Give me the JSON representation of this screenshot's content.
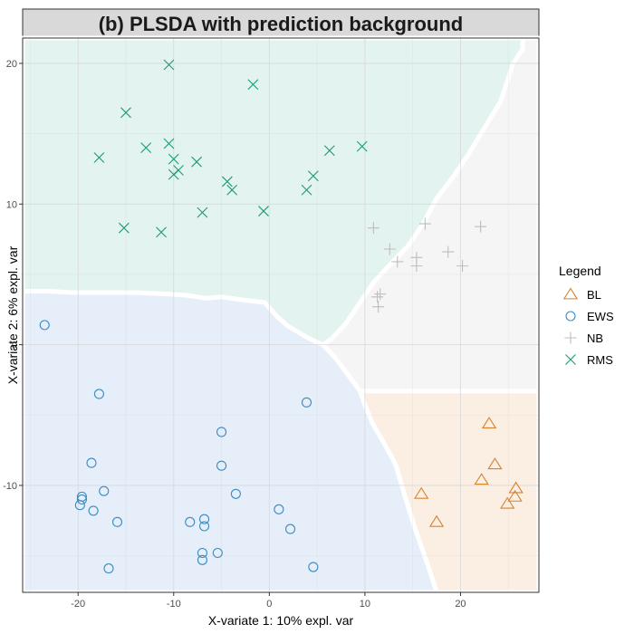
{
  "chart_data": {
    "type": "scatter",
    "title": "(b) PLSDA with prediction background",
    "xlabel": "X-variate 1: 10% expl. var",
    "ylabel": "X-variate 2: 6% expl. var",
    "xlim": [
      -25.8,
      28.2
    ],
    "ylim": [
      -17.6,
      21.8
    ],
    "x_ticks": [
      -20,
      -10,
      0,
      10,
      20
    ],
    "y_ticks": [
      -10,
      0,
      10,
      20
    ],
    "grid": true,
    "legend": {
      "title": "Legend",
      "position": "right"
    },
    "background_regions": [
      {
        "class": "RMS",
        "color": "#e3f3ef",
        "polygon": [
          [
            -25.8,
            21.8
          ],
          [
            26.5,
            21.8
          ],
          [
            26.5,
            21.0
          ],
          [
            25.5,
            20.0
          ],
          [
            24.2,
            17.3
          ],
          [
            22.4,
            15.3
          ],
          [
            20.8,
            13.5
          ],
          [
            19.2,
            11.9
          ],
          [
            17.5,
            10.4
          ],
          [
            16.0,
            8.5
          ],
          [
            14.5,
            7.0
          ],
          [
            12.5,
            5.6
          ],
          [
            11.0,
            4.5
          ],
          [
            9.5,
            3.0
          ],
          [
            8.0,
            1.5
          ],
          [
            6.5,
            0.4
          ],
          [
            5.6,
            0.0
          ],
          [
            4.0,
            0.5
          ],
          [
            2.0,
            1.3
          ],
          [
            0.8,
            2.0
          ],
          [
            -0.5,
            3.0
          ],
          [
            -3.0,
            3.2
          ],
          [
            -5.0,
            3.4
          ],
          [
            -6.5,
            3.3
          ],
          [
            -8.5,
            3.5
          ],
          [
            -10.5,
            3.6
          ],
          [
            -14.0,
            3.7
          ],
          [
            -17.0,
            3.7
          ],
          [
            -20.5,
            3.7
          ],
          [
            -23.0,
            3.8
          ],
          [
            -25.8,
            3.8
          ]
        ]
      },
      {
        "class": "NB",
        "color": "#f5f5f5",
        "polygon": [
          [
            26.5,
            21.8
          ],
          [
            28.2,
            21.8
          ],
          [
            28.2,
            -3.3
          ],
          [
            9.5,
            -3.3
          ],
          [
            8.3,
            -2.2
          ],
          [
            7.0,
            -1.0
          ],
          [
            5.6,
            0.0
          ],
          [
            6.5,
            0.4
          ],
          [
            8.0,
            1.5
          ],
          [
            9.5,
            3.0
          ],
          [
            11.0,
            4.5
          ],
          [
            12.5,
            5.6
          ],
          [
            14.5,
            7.0
          ],
          [
            16.0,
            8.5
          ],
          [
            17.5,
            10.4
          ],
          [
            19.2,
            11.9
          ],
          [
            20.8,
            13.5
          ],
          [
            22.4,
            15.3
          ],
          [
            24.2,
            17.3
          ],
          [
            25.5,
            20.0
          ],
          [
            26.5,
            21.0
          ]
        ]
      },
      {
        "class": "BL",
        "color": "#fbeee3",
        "polygon": [
          [
            9.5,
            -3.3
          ],
          [
            28.2,
            -3.3
          ],
          [
            28.2,
            -17.6
          ],
          [
            17.5,
            -17.6
          ],
          [
            16.5,
            -15.5
          ],
          [
            15.2,
            -13.0
          ],
          [
            14.2,
            -10.8
          ],
          [
            13.2,
            -8.5
          ],
          [
            12.0,
            -7.0
          ],
          [
            10.8,
            -5.6
          ],
          [
            10.0,
            -4.3
          ]
        ]
      },
      {
        "class": "EWS",
        "color": "#e5eef9",
        "polygon": [
          [
            -25.8,
            3.8
          ],
          [
            -23.0,
            3.8
          ],
          [
            -20.5,
            3.7
          ],
          [
            -17.0,
            3.7
          ],
          [
            -14.0,
            3.7
          ],
          [
            -10.5,
            3.6
          ],
          [
            -8.5,
            3.5
          ],
          [
            -6.5,
            3.3
          ],
          [
            -5.0,
            3.4
          ],
          [
            -3.0,
            3.2
          ],
          [
            -0.5,
            3.0
          ],
          [
            0.8,
            2.0
          ],
          [
            2.0,
            1.3
          ],
          [
            4.0,
            0.5
          ],
          [
            5.6,
            0.0
          ],
          [
            7.0,
            -1.0
          ],
          [
            8.3,
            -2.2
          ],
          [
            9.5,
            -3.3
          ],
          [
            10.0,
            -4.3
          ],
          [
            10.8,
            -5.6
          ],
          [
            12.0,
            -7.0
          ],
          [
            13.2,
            -8.5
          ],
          [
            14.2,
            -10.8
          ],
          [
            15.2,
            -13.0
          ],
          [
            16.5,
            -15.5
          ],
          [
            17.5,
            -17.6
          ],
          [
            -25.8,
            -17.6
          ]
        ]
      }
    ],
    "series": [
      {
        "name": "BL",
        "shape": "triangle",
        "color": "#d9822b",
        "points": [
          [
            15.9,
            -10.6
          ],
          [
            17.5,
            -12.6
          ],
          [
            22.2,
            -9.6
          ],
          [
            23.0,
            -5.6
          ],
          [
            23.6,
            -8.5
          ],
          [
            24.9,
            -11.3
          ],
          [
            25.7,
            -10.8
          ],
          [
            25.8,
            -10.2
          ]
        ]
      },
      {
        "name": "EWS",
        "shape": "circle",
        "color": "#3a8cc2",
        "points": [
          [
            -23.5,
            1.4
          ],
          [
            -17.8,
            -3.5
          ],
          [
            -18.6,
            -8.4
          ],
          [
            -17.3,
            -10.4
          ],
          [
            -19.6,
            -10.8
          ],
          [
            -19.8,
            -11.4
          ],
          [
            -19.6,
            -11.0
          ],
          [
            -18.4,
            -11.8
          ],
          [
            -15.9,
            -12.6
          ],
          [
            -16.8,
            -15.9
          ],
          [
            -8.3,
            -12.6
          ],
          [
            -6.8,
            -12.4
          ],
          [
            -6.8,
            -12.9
          ],
          [
            -7.0,
            -14.8
          ],
          [
            -7.0,
            -15.3
          ],
          [
            -5.4,
            -14.8
          ],
          [
            -5.0,
            -6.2
          ],
          [
            -5.0,
            -8.6
          ],
          [
            -3.5,
            -10.6
          ],
          [
            1.0,
            -11.7
          ],
          [
            2.2,
            -13.1
          ],
          [
            3.9,
            -4.1
          ],
          [
            4.6,
            -15.8
          ]
        ]
      },
      {
        "name": "NB",
        "shape": "plus",
        "color": "#bdbdbd",
        "points": [
          [
            10.9,
            8.3
          ],
          [
            12.6,
            6.8
          ],
          [
            13.4,
            5.9
          ],
          [
            15.4,
            6.2
          ],
          [
            15.4,
            5.6
          ],
          [
            16.3,
            8.6
          ],
          [
            18.7,
            6.6
          ],
          [
            20.2,
            5.6
          ],
          [
            22.1,
            8.4
          ],
          [
            11.3,
            3.4
          ],
          [
            11.6,
            3.6
          ],
          [
            11.4,
            2.7
          ]
        ]
      },
      {
        "name": "RMS",
        "shape": "x",
        "color": "#1a9a78",
        "points": [
          [
            -10.5,
            19.9
          ],
          [
            -1.7,
            18.5
          ],
          [
            -15.0,
            16.5
          ],
          [
            -12.9,
            14.0
          ],
          [
            -10.5,
            14.3
          ],
          [
            -10.0,
            13.2
          ],
          [
            -9.5,
            12.4
          ],
          [
            -10.0,
            12.1
          ],
          [
            -17.8,
            13.3
          ],
          [
            -7.6,
            13.0
          ],
          [
            -4.4,
            11.6
          ],
          [
            -3.9,
            11.0
          ],
          [
            -7.0,
            9.4
          ],
          [
            -0.6,
            9.5
          ],
          [
            -11.3,
            8.0
          ],
          [
            -15.2,
            8.3
          ],
          [
            3.9,
            11.0
          ],
          [
            4.6,
            12.0
          ],
          [
            6.3,
            13.8
          ],
          [
            9.7,
            14.1
          ]
        ]
      }
    ]
  }
}
